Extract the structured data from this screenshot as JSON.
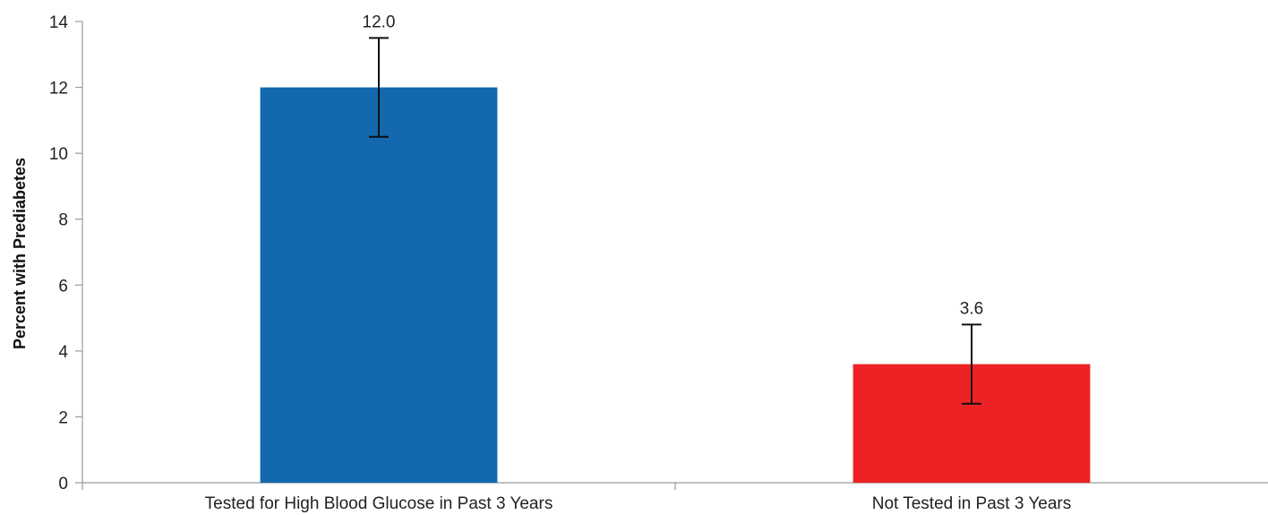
{
  "chart_data": {
    "type": "bar",
    "title": "",
    "xlabel": "",
    "ylabel": "Percent with Prediabetes",
    "categories": [
      "Tested for High Blood Glucose in Past 3 Years",
      "Not Tested in Past 3 Years"
    ],
    "values": [
      12.0,
      3.6
    ],
    "value_labels": [
      "12.0",
      "3.6"
    ],
    "error_bars": [
      {
        "low": 10.5,
        "high": 13.5
      },
      {
        "low": 2.4,
        "high": 4.8
      }
    ],
    "colors": [
      "#1368ae",
      "#ed2224"
    ],
    "ylim": [
      0,
      14
    ],
    "yticks": [
      0,
      2,
      4,
      6,
      8,
      10,
      12,
      14
    ],
    "ytick_labels": [
      "0",
      "2",
      "4",
      "6",
      "8",
      "10",
      "12",
      "14"
    ],
    "grid": false,
    "legend": "none"
  }
}
